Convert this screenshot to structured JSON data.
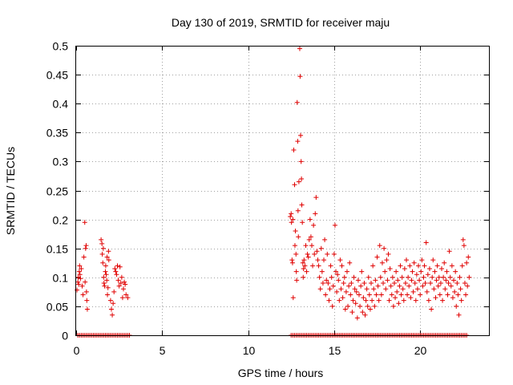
{
  "chart_data": {
    "type": "scatter",
    "title": "Day 130 of 2019, SRMTID for receiver maju",
    "xlabel": "GPS time / hours",
    "ylabel": "SRMTID / TECUs",
    "xlim": [
      0,
      24
    ],
    "ylim": [
      0,
      0.5
    ],
    "x_ticks": [
      0,
      5,
      10,
      15,
      20
    ],
    "y_ticks": [
      0,
      0.05,
      0.1,
      0.15,
      0.2,
      0.25,
      0.3,
      0.35,
      0.4,
      0.45,
      0.5
    ],
    "x_tick_labels": [
      "0",
      "5",
      "10",
      "15",
      "20"
    ],
    "y_tick_labels": [
      "0",
      "0.05",
      "0.1",
      "0.15",
      "0.2",
      "0.25",
      "0.3",
      "0.35",
      "0.4",
      "0.45",
      "0.5"
    ],
    "grid": true,
    "marker": "+",
    "color": "#e00000",
    "series": [
      {
        "name": "SRMTID",
        "points": [
          [
            0.05,
            0.078
          ],
          [
            0.1,
            0.092
          ],
          [
            0.12,
            0.1
          ],
          [
            0.15,
            0.088
          ],
          [
            0.18,
            0.11
          ],
          [
            0.2,
            0.12
          ],
          [
            0.22,
            0.105
          ],
          [
            0.25,
            0.098
          ],
          [
            0.3,
            0.115
          ],
          [
            0.35,
            0.085
          ],
          [
            0.4,
            0.07
          ],
          [
            0.45,
            0.135
          ],
          [
            0.5,
            0.195
          ],
          [
            0.52,
            0.092
          ],
          [
            0.55,
            0.15
          ],
          [
            0.58,
            0.155
          ],
          [
            0.6,
            0.075
          ],
          [
            0.62,
            0.06
          ],
          [
            0.65,
            0.045
          ],
          [
            1.45,
            0.165
          ],
          [
            1.5,
            0.158
          ],
          [
            1.52,
            0.14
          ],
          [
            1.55,
            0.125
          ],
          [
            1.58,
            0.15
          ],
          [
            1.6,
            0.1
          ],
          [
            1.62,
            0.09
          ],
          [
            1.65,
            0.085
          ],
          [
            1.7,
            0.11
          ],
          [
            1.72,
            0.12
          ],
          [
            1.75,
            0.105
          ],
          [
            1.78,
            0.095
          ],
          [
            1.8,
            0.135
          ],
          [
            1.82,
            0.07
          ],
          [
            1.85,
            0.082
          ],
          [
            1.88,
            0.145
          ],
          [
            1.9,
            0.13
          ],
          [
            2.0,
            0.06
          ],
          [
            2.05,
            0.045
          ],
          [
            2.1,
            0.035
          ],
          [
            2.15,
            0.055
          ],
          [
            2.2,
            0.075
          ],
          [
            2.25,
            0.115
          ],
          [
            2.3,
            0.11
          ],
          [
            2.35,
            0.105
          ],
          [
            2.4,
            0.12
          ],
          [
            2.45,
            0.095
          ],
          [
            2.5,
            0.085
          ],
          [
            2.55,
            0.118
          ],
          [
            2.6,
            0.09
          ],
          [
            2.65,
            0.1
          ],
          [
            2.7,
            0.065
          ],
          [
            2.75,
            0.08
          ],
          [
            2.8,
            0.092
          ],
          [
            2.85,
            0.088
          ],
          [
            2.9,
            0.07
          ],
          [
            3.0,
            0.065
          ],
          [
            12.45,
            0.205
          ],
          [
            12.5,
            0.21
          ],
          [
            12.52,
            0.195
          ],
          [
            12.55,
            0.13
          ],
          [
            12.58,
            0.125
          ],
          [
            12.6,
            0.2
          ],
          [
            12.62,
            0.065
          ],
          [
            12.65,
            0.32
          ],
          [
            12.7,
            0.26
          ],
          [
            12.72,
            0.155
          ],
          [
            12.75,
            0.18
          ],
          [
            12.78,
            0.14
          ],
          [
            12.8,
            0.11
          ],
          [
            12.82,
            0.095
          ],
          [
            12.85,
            0.402
          ],
          [
            12.88,
            0.335
          ],
          [
            12.9,
            0.215
          ],
          [
            12.92,
            0.17
          ],
          [
            12.95,
            0.265
          ],
          [
            13.0,
            0.495
          ],
          [
            13.02,
            0.447
          ],
          [
            13.05,
            0.345
          ],
          [
            13.08,
            0.3
          ],
          [
            13.1,
            0.27
          ],
          [
            13.12,
            0.225
          ],
          [
            13.15,
            0.195
          ],
          [
            13.18,
            0.125
          ],
          [
            13.2,
            0.1
          ],
          [
            13.22,
            0.115
          ],
          [
            13.25,
            0.13
          ],
          [
            13.3,
            0.12
          ],
          [
            13.35,
            0.155
          ],
          [
            13.4,
            0.11
          ],
          [
            13.45,
            0.14
          ],
          [
            13.5,
            0.135
          ],
          [
            13.55,
            0.165
          ],
          [
            13.6,
            0.2
          ],
          [
            13.65,
            0.17
          ],
          [
            13.7,
            0.155
          ],
          [
            13.75,
            0.12
          ],
          [
            13.8,
            0.19
          ],
          [
            13.85,
            0.14
          ],
          [
            13.9,
            0.21
          ],
          [
            13.95,
            0.238
          ],
          [
            14.0,
            0.145
          ],
          [
            14.05,
            0.13
          ],
          [
            14.1,
            0.12
          ],
          [
            14.15,
            0.1
          ],
          [
            14.2,
            0.08
          ],
          [
            14.25,
            0.15
          ],
          [
            14.3,
            0.11
          ],
          [
            14.35,
            0.09
          ],
          [
            14.4,
            0.13
          ],
          [
            14.45,
            0.165
          ],
          [
            14.5,
            0.07
          ],
          [
            14.55,
            0.095
          ],
          [
            14.6,
            0.14
          ],
          [
            14.65,
            0.09
          ],
          [
            14.7,
            0.06
          ],
          [
            14.75,
            0.08
          ],
          [
            14.8,
            0.12
          ],
          [
            14.85,
            0.1
          ],
          [
            14.9,
            0.05
          ],
          [
            14.95,
            0.085
          ],
          [
            15.0,
            0.14
          ],
          [
            15.05,
            0.19
          ],
          [
            15.1,
            0.11
          ],
          [
            15.15,
            0.075
          ],
          [
            15.2,
            0.105
          ],
          [
            15.25,
            0.095
          ],
          [
            15.3,
            0.06
          ],
          [
            15.35,
            0.13
          ],
          [
            15.4,
            0.08
          ],
          [
            15.45,
            0.12
          ],
          [
            15.5,
            0.065
          ],
          [
            15.55,
            0.09
          ],
          [
            15.6,
            0.1
          ],
          [
            15.65,
            0.045
          ],
          [
            15.7,
            0.075
          ],
          [
            15.75,
            0.11
          ],
          [
            15.8,
            0.05
          ],
          [
            15.85,
            0.085
          ],
          [
            15.9,
            0.125
          ],
          [
            15.95,
            0.07
          ],
          [
            16.0,
            0.09
          ],
          [
            16.05,
            0.04
          ],
          [
            16.1,
            0.06
          ],
          [
            16.15,
            0.1
          ],
          [
            16.2,
            0.08
          ],
          [
            16.25,
            0.055
          ],
          [
            16.3,
            0.075
          ],
          [
            16.35,
            0.03
          ],
          [
            16.4,
            0.095
          ],
          [
            16.45,
            0.07
          ],
          [
            16.5,
            0.05
          ],
          [
            16.55,
            0.085
          ],
          [
            16.6,
            0.11
          ],
          [
            16.65,
            0.04
          ],
          [
            16.7,
            0.065
          ],
          [
            16.75,
            0.09
          ],
          [
            16.8,
            0.035
          ],
          [
            16.85,
            0.06
          ],
          [
            16.9,
            0.08
          ],
          [
            16.95,
            0.05
          ],
          [
            17.0,
            0.1
          ],
          [
            17.05,
            0.07
          ],
          [
            17.1,
            0.045
          ],
          [
            17.15,
            0.09
          ],
          [
            17.2,
            0.06
          ],
          [
            17.25,
            0.12
          ],
          [
            17.3,
            0.08
          ],
          [
            17.35,
            0.05
          ],
          [
            17.4,
            0.095
          ],
          [
            17.45,
            0.07
          ],
          [
            17.5,
            0.135
          ],
          [
            17.55,
            0.085
          ],
          [
            17.6,
            0.06
          ],
          [
            17.65,
            0.155
          ],
          [
            17.7,
            0.1
          ],
          [
            17.75,
            0.07
          ],
          [
            17.8,
            0.125
          ],
          [
            17.85,
            0.09
          ],
          [
            17.9,
            0.15
          ],
          [
            17.95,
            0.11
          ],
          [
            18.0,
            0.08
          ],
          [
            18.05,
            0.13
          ],
          [
            18.1,
            0.095
          ],
          [
            18.15,
            0.14
          ],
          [
            18.2,
            0.06
          ],
          [
            18.25,
            0.115
          ],
          [
            18.3,
            0.085
          ],
          [
            18.35,
            0.07
          ],
          [
            18.4,
            0.1
          ],
          [
            18.45,
            0.05
          ],
          [
            18.5,
            0.09
          ],
          [
            18.55,
            0.065
          ],
          [
            18.6,
            0.11
          ],
          [
            18.65,
            0.075
          ],
          [
            18.7,
            0.095
          ],
          [
            18.75,
            0.055
          ],
          [
            18.8,
            0.085
          ],
          [
            18.85,
            0.12
          ],
          [
            18.9,
            0.07
          ],
          [
            18.95,
            0.1
          ],
          [
            19.0,
            0.08
          ],
          [
            19.05,
            0.06
          ],
          [
            19.1,
            0.115
          ],
          [
            19.15,
            0.09
          ],
          [
            19.2,
            0.13
          ],
          [
            19.25,
            0.07
          ],
          [
            19.3,
            0.1
          ],
          [
            19.35,
            0.085
          ],
          [
            19.4,
            0.12
          ],
          [
            19.45,
            0.065
          ],
          [
            19.5,
            0.095
          ],
          [
            19.55,
            0.11
          ],
          [
            19.6,
            0.075
          ],
          [
            19.65,
            0.125
          ],
          [
            19.7,
            0.09
          ],
          [
            19.75,
            0.06
          ],
          [
            19.8,
            0.105
          ],
          [
            19.85,
            0.08
          ],
          [
            19.9,
            0.12
          ],
          [
            19.95,
            0.095
          ],
          [
            20.0,
            0.07
          ],
          [
            20.05,
            0.11
          ],
          [
            20.1,
            0.13
          ],
          [
            20.15,
            0.085
          ],
          [
            20.2,
            0.1
          ],
          [
            20.25,
            0.12
          ],
          [
            20.3,
            0.09
          ],
          [
            20.35,
            0.16
          ],
          [
            20.4,
            0.075
          ],
          [
            20.45,
            0.105
          ],
          [
            20.5,
            0.06
          ],
          [
            20.55,
            0.115
          ],
          [
            20.6,
            0.09
          ],
          [
            20.65,
            0.045
          ],
          [
            20.7,
            0.1
          ],
          [
            20.75,
            0.13
          ],
          [
            20.8,
            0.08
          ],
          [
            20.85,
            0.11
          ],
          [
            20.9,
            0.065
          ],
          [
            20.95,
            0.095
          ],
          [
            21.0,
            0.12
          ],
          [
            21.05,
            0.085
          ],
          [
            21.1,
            0.1
          ],
          [
            21.15,
            0.07
          ],
          [
            21.2,
            0.09
          ],
          [
            21.25,
            0.115
          ],
          [
            21.3,
            0.06
          ],
          [
            21.35,
            0.1
          ],
          [
            21.4,
            0.125
          ],
          [
            21.45,
            0.08
          ],
          [
            21.5,
            0.095
          ],
          [
            21.55,
            0.11
          ],
          [
            21.6,
            0.07
          ],
          [
            21.65,
            0.09
          ],
          [
            21.7,
            0.145
          ],
          [
            21.75,
            0.1
          ],
          [
            21.8,
            0.085
          ],
          [
            21.85,
            0.12
          ],
          [
            21.9,
            0.065
          ],
          [
            21.95,
            0.095
          ],
          [
            22.0,
            0.075
          ],
          [
            22.05,
            0.11
          ],
          [
            22.1,
            0.05
          ],
          [
            22.15,
            0.09
          ],
          [
            22.2,
            0.07
          ],
          [
            22.25,
            0.035
          ],
          [
            22.3,
            0.1
          ],
          [
            22.35,
            0.08
          ],
          [
            22.4,
            0.06
          ],
          [
            22.45,
            0.12
          ],
          [
            22.5,
            0.165
          ],
          [
            22.55,
            0.155
          ],
          [
            22.6,
            0.09
          ],
          [
            22.65,
            0.07
          ],
          [
            22.7,
            0.125
          ],
          [
            22.75,
            0.085
          ],
          [
            22.8,
            0.135
          ],
          [
            22.85,
            0.1
          ]
        ]
      }
    ],
    "zero_points_x": [
      0.1,
      0.2,
      0.3,
      0.4,
      0.5,
      0.6,
      0.7,
      0.8,
      0.9,
      1.0,
      1.1,
      1.2,
      1.3,
      1.4,
      1.5,
      1.6,
      1.7,
      1.8,
      1.9,
      2.0,
      2.1,
      2.2,
      2.3,
      2.4,
      2.5,
      2.6,
      2.7,
      2.8,
      2.9,
      3.0,
      3.1,
      12.5,
      12.6,
      12.7,
      12.8,
      12.9,
      13.0,
      13.1,
      13.2,
      13.3,
      13.4,
      13.5,
      13.6,
      13.7,
      13.8,
      13.9,
      14.0,
      14.1,
      14.2,
      14.3,
      14.4,
      14.5,
      14.6,
      14.7,
      14.8,
      14.9,
      15.0,
      15.1,
      15.2,
      15.3,
      15.4,
      15.5,
      15.6,
      15.7,
      15.8,
      15.9,
      16.0,
      16.1,
      16.2,
      16.3,
      16.4,
      16.5,
      16.6,
      16.7,
      16.8,
      16.9,
      17.0,
      17.1,
      17.2,
      17.3,
      17.4,
      17.5,
      17.6,
      17.7,
      17.8,
      17.9,
      18.0,
      18.1,
      18.2,
      18.3,
      18.4,
      18.5,
      18.6,
      18.7,
      18.8,
      18.9,
      19.0,
      19.1,
      19.2,
      19.3,
      19.4,
      19.5,
      19.6,
      19.7,
      19.8,
      19.9,
      20.0,
      20.1,
      20.2,
      20.3,
      20.4,
      20.5,
      20.6,
      20.7,
      20.8,
      20.9,
      21.0,
      21.1,
      21.2,
      21.3,
      21.4,
      21.5,
      21.6,
      21.7,
      21.8,
      21.9,
      22.0,
      22.1,
      22.2,
      22.3,
      22.4,
      22.5,
      22.6,
      22.7
    ]
  }
}
